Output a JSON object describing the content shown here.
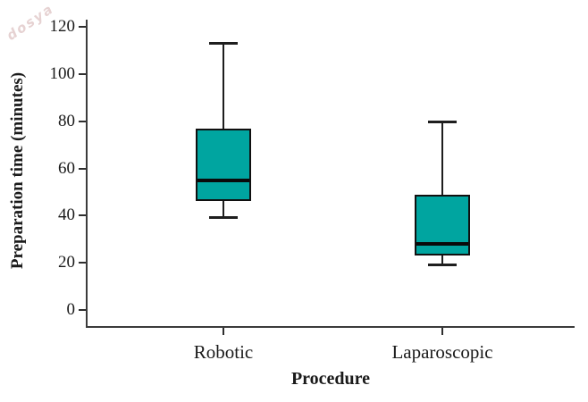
{
  "watermark": {
    "text": "dosya"
  },
  "chart_data": {
    "type": "boxplot",
    "title": "",
    "xlabel": "Procedure",
    "ylabel": "Preparation time (minutes)",
    "categories": [
      "Robotic",
      "Laparoscopic"
    ],
    "y_ticks": [
      0,
      20,
      40,
      60,
      80,
      100,
      120
    ],
    "ylim": [
      0,
      120
    ],
    "grid": false,
    "legend": "none",
    "series": [
      {
        "name": "Robotic",
        "min": 39,
        "q1": 46,
        "median": 55,
        "q3": 77,
        "max": 113
      },
      {
        "name": "Laparoscopic",
        "min": 19,
        "q1": 23,
        "median": 28,
        "q3": 49,
        "max": 80
      }
    ],
    "box_fill_color": "#00A5A0",
    "line_color": "#1a1a1a",
    "background_color": "#ffffff"
  }
}
